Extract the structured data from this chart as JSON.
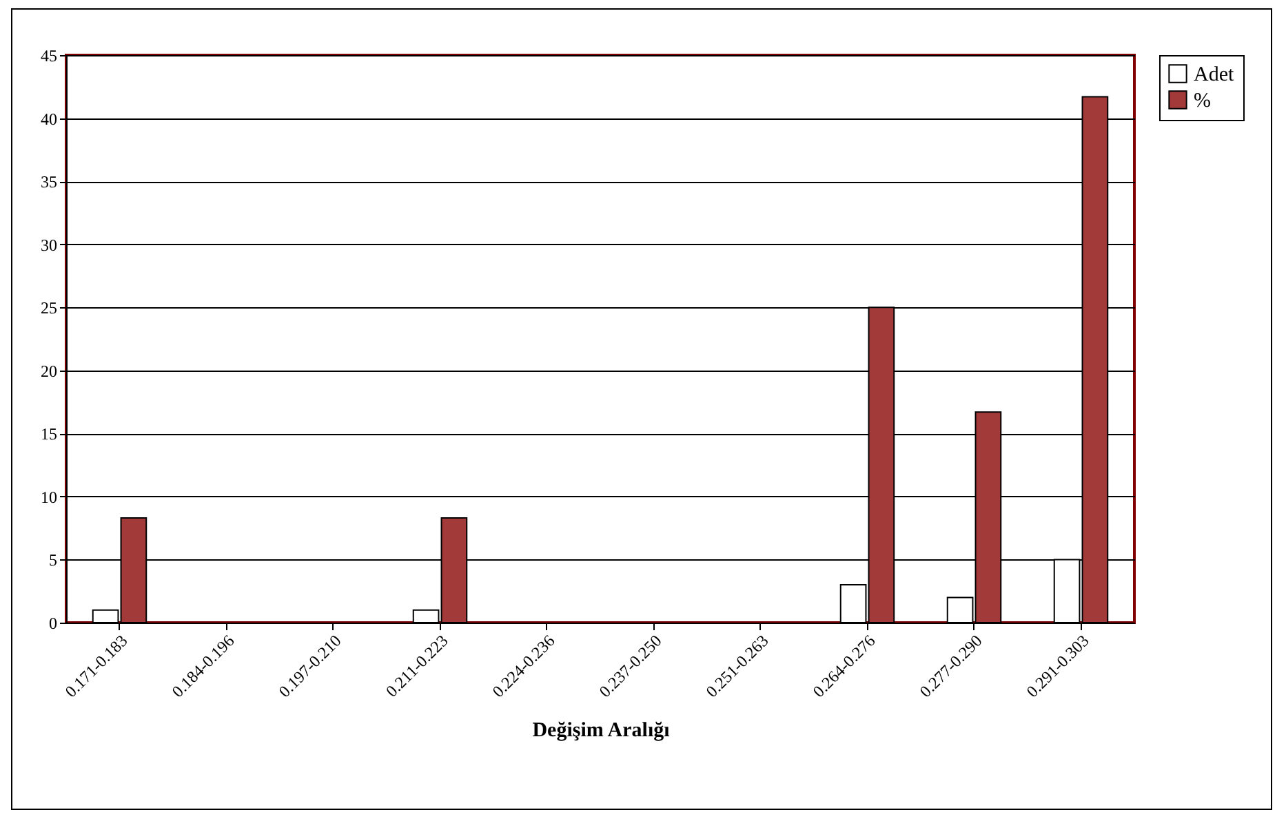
{
  "chart_data": {
    "type": "bar",
    "xlabel": "Değişim Aralığı",
    "categories": [
      "0.171-0.183",
      "0.184-0.196",
      "0.197-0.210",
      "0.211-0.223",
      "0.224-0.236",
      "0.237-0.250",
      "0.251-0.263",
      "0.264-0.276",
      "0.277-0.290",
      "0.291-0.303"
    ],
    "series": [
      {
        "name": "Adet",
        "color": "#ffffff",
        "values": [
          1,
          0,
          0,
          1,
          0,
          0,
          0,
          3,
          2,
          5
        ]
      },
      {
        "name": "%",
        "color": "#a33a3a",
        "values": [
          8.3,
          0,
          0,
          8.3,
          0,
          0,
          0,
          25,
          16.7,
          41.7
        ]
      }
    ],
    "ylim": [
      0,
      45
    ],
    "yticks": [
      0,
      5,
      10,
      15,
      20,
      25,
      30,
      35,
      40,
      45
    ],
    "grid": "y",
    "legend": "right"
  }
}
